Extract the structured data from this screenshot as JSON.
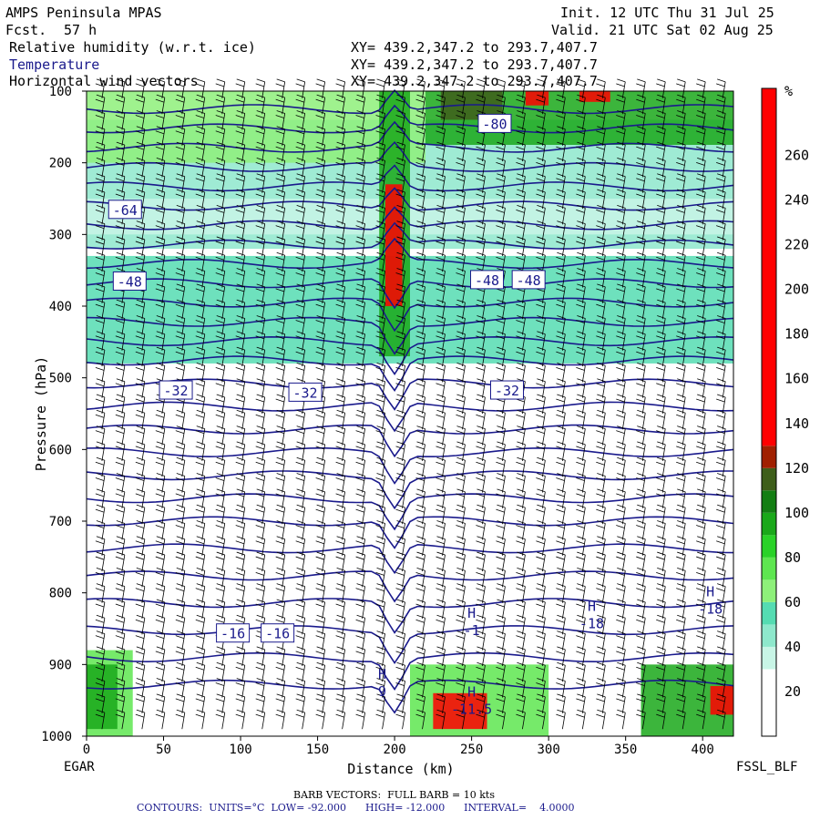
{
  "header": {
    "model": "AMPS Peninsula MPAS",
    "fcst_label": "Fcst.",
    "fcst_value": "57 h",
    "init": "Init. 12 UTC Thu 31 Jul 25",
    "valid": "Valid. 21 UTC Sat 02 Aug 25",
    "fields": [
      {
        "label": "Relative humidity (w.r.t. ice)",
        "xy": "XY= 439.2,347.2 to 293.7,407.7",
        "color": "#000000"
      },
      {
        "label": "Temperature",
        "xy": "XY= 439.2,347.2 to 293.7,407.7",
        "color": "#1a1a8c"
      },
      {
        "label": "Horizontal wind vectors",
        "xy": "XY= 439.2,347.2 to 293.7,407.7",
        "color": "#000000"
      }
    ]
  },
  "footer": {
    "left_station": "EGAR",
    "right_station": "FSSL_BLF",
    "barb": "BARB VECTORS:  FULL BARB = 10 kts",
    "contours": "CONTOURS:  UNITS=°C  LOW= -92.000      HIGH= -12.000      INTERVAL=    4.0000"
  },
  "chart_data": {
    "type": "heatmap",
    "title": "",
    "xlabel": "Distance (km)",
    "ylabel": "Pressure (hPa)",
    "xlim": [
      0,
      420
    ],
    "ylim": [
      1000,
      100
    ],
    "x_ticks": [
      0,
      50,
      100,
      150,
      200,
      250,
      300,
      350,
      400
    ],
    "y_ticks": [
      100,
      200,
      300,
      400,
      500,
      600,
      700,
      800,
      900,
      1000
    ],
    "colorbar": {
      "unit": "%",
      "ticks": [
        20,
        40,
        60,
        80,
        100,
        120,
        140,
        160,
        180,
        200,
        220,
        240,
        260
      ],
      "bands": [
        {
          "from": 0,
          "to": 10,
          "color": "#ffffff"
        },
        {
          "from": 10,
          "to": 30,
          "color": "#ffffff"
        },
        {
          "from": 30,
          "to": 40,
          "color": "#c8f5e6"
        },
        {
          "from": 40,
          "to": 50,
          "color": "#8ee8cc"
        },
        {
          "from": 50,
          "to": 60,
          "color": "#55dcb2"
        },
        {
          "from": 60,
          "to": 70,
          "color": "#8ef07a"
        },
        {
          "from": 70,
          "to": 80,
          "color": "#5ee650"
        },
        {
          "from": 80,
          "to": 90,
          "color": "#2ad228"
        },
        {
          "from": 90,
          "to": 100,
          "color": "#1aa81a"
        },
        {
          "from": 100,
          "to": 110,
          "color": "#137e13"
        },
        {
          "from": 110,
          "to": 120,
          "color": "#3e5e1a"
        },
        {
          "from": 120,
          "to": 130,
          "color": "#a02000"
        },
        {
          "from": 130,
          "to": 290,
          "color": "#ff0000"
        }
      ]
    },
    "rh_regions": [
      {
        "x": [
          0,
          420
        ],
        "p": [
          140,
          320
        ],
        "rh": 45
      },
      {
        "x": [
          0,
          420
        ],
        "p": [
          330,
          480
        ],
        "rh": 52
      },
      {
        "x": [
          0,
          420
        ],
        "p": [
          250,
          300
        ],
        "rh": 35
      },
      {
        "x": [
          220,
          420
        ],
        "p": [
          100,
          175
        ],
        "rh": 95
      },
      {
        "x": [
          230,
          270
        ],
        "p": [
          100,
          140
        ],
        "rh": 115
      },
      {
        "x": [
          285,
          300
        ],
        "p": [
          100,
          120
        ],
        "rh": 140
      },
      {
        "x": [
          320,
          340
        ],
        "p": [
          100,
          115
        ],
        "rh": 140
      },
      {
        "x": [
          0,
          220
        ],
        "p": [
          100,
          200
        ],
        "rh": 65
      },
      {
        "x": [
          190,
          210
        ],
        "p": [
          100,
          470
        ],
        "rh": 90
      },
      {
        "x": [
          194,
          205
        ],
        "p": [
          230,
          400
        ],
        "rh": 200
      },
      {
        "x": [
          0,
          30
        ],
        "p": [
          880,
          1000
        ],
        "rh": 70
      },
      {
        "x": [
          0,
          20
        ],
        "p": [
          900,
          990
        ],
        "rh": 90
      },
      {
        "x": [
          210,
          300
        ],
        "p": [
          900,
          1000
        ],
        "rh": 70
      },
      {
        "x": [
          225,
          260
        ],
        "p": [
          940,
          990
        ],
        "rh": 130
      },
      {
        "x": [
          360,
          420
        ],
        "p": [
          900,
          1000
        ],
        "rh": 95
      },
      {
        "x": [
          405,
          420
        ],
        "p": [
          930,
          970
        ],
        "rh": 150
      }
    ],
    "temperature_isotherms": [
      -80,
      -64,
      -48,
      -32,
      -16
    ],
    "temperature_labels": [
      {
        "text": "-80",
        "x": 265,
        "p": 145
      },
      {
        "text": "-64",
        "x": 25,
        "p": 265
      },
      {
        "text": "-48",
        "x": 28,
        "p": 365
      },
      {
        "text": "-48",
        "x": 260,
        "p": 363
      },
      {
        "text": "-48",
        "x": 287,
        "p": 363
      },
      {
        "text": "-32",
        "x": 58,
        "p": 517
      },
      {
        "text": "-32",
        "x": 142,
        "p": 520
      },
      {
        "text": "-32",
        "x": 273,
        "p": 517
      },
      {
        "text": "-16",
        "x": 95,
        "p": 856
      },
      {
        "text": "-16",
        "x": 124,
        "p": 856
      }
    ],
    "highs": [
      {
        "label": "H",
        "value": "9",
        "x": 192,
        "p": 920
      },
      {
        "label": "H",
        "value": "-1",
        "x": 250,
        "p": 835
      },
      {
        "label": "H",
        "value": "-11.5",
        "x": 250,
        "p": 945
      },
      {
        "label": "H",
        "value": "-18",
        "x": 328,
        "p": 825
      },
      {
        "label": "H",
        "value": "-18",
        "x": 405,
        "p": 805
      }
    ]
  }
}
